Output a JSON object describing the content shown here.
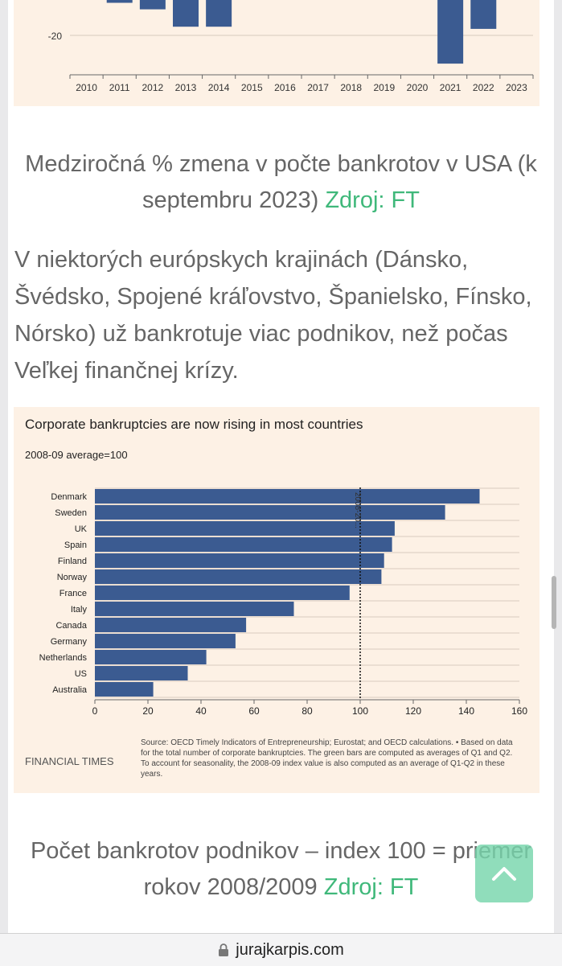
{
  "top_chart": {
    "chart_data": {
      "type": "bar",
      "categories": [
        "2010",
        "2011",
        "2012",
        "2013",
        "2014",
        "2015",
        "2016",
        "2017",
        "2018",
        "2019",
        "2020",
        "2021",
        "2022",
        "2023"
      ],
      "values": [
        null,
        -5,
        -8,
        -16,
        -16,
        -2,
        null,
        null,
        null,
        null,
        null,
        -33,
        -17,
        null
      ],
      "y_tick_labels": [
        "-20"
      ],
      "ylim": [
        -35,
        0
      ],
      "grid": true
    },
    "bar_color": "#3b5b91"
  },
  "caption1": {
    "text": "Medziročná % zmena v počte bankrotov v USA (k septembru 2023)",
    "source": "Zdroj: FT"
  },
  "paragraph": "V niektorých európskych krajinách (Dánsko, Švédsko, Spojené kráľovstvo, Španielsko, Fínsko, Nórsko) už bankrotuje viac podnikov, než počas Veľkej finančnej krízy.",
  "bottom_chart": {
    "chart_data": {
      "type": "bar",
      "orientation": "horizontal",
      "title": "Corporate bankruptcies are now rising in most countries",
      "subtitle": "2008-09 average=100",
      "categories": [
        "Denmark",
        "Sweden",
        "UK",
        "Spain",
        "Finland",
        "Norway",
        "France",
        "Italy",
        "Canada",
        "Germany",
        "Netherlands",
        "US",
        "Australia"
      ],
      "values": [
        145,
        132,
        113,
        112,
        109,
        108,
        96,
        75,
        57,
        53,
        42,
        35,
        22
      ],
      "xlim": [
        0,
        160
      ],
      "x_ticks": [
        0,
        20,
        40,
        60,
        80,
        100,
        120,
        140,
        160
      ],
      "reference_line": {
        "value": 100,
        "label": "2008-20..."
      },
      "grid": true
    },
    "bar_color": "#3b5b91",
    "brand": "FINANCIAL TIMES",
    "source_note": "Source: OECD Timely Indicators of Entrepreneurship; Eurostat; and OECD calculations. • Based on data for the total number of corporate bankruptcies. The green bars are computed as averages of Q1 and Q2. To account for seasonality, the 2008-09 index value is also computed as an average of Q1-Q2 in these years."
  },
  "caption2": {
    "text": "Počet bankrotov podnikov – index 100 = priemer rokov 2008/2009",
    "source": "Zdroj: FT"
  },
  "back_to_top": {
    "icon": "chevron-up-icon"
  },
  "url_bar": {
    "url": "jurajkarpis.com",
    "icon": "lock-icon"
  },
  "colors": {
    "accent_green": "#3fb87a",
    "chart_bg": "#fdf1e5"
  }
}
